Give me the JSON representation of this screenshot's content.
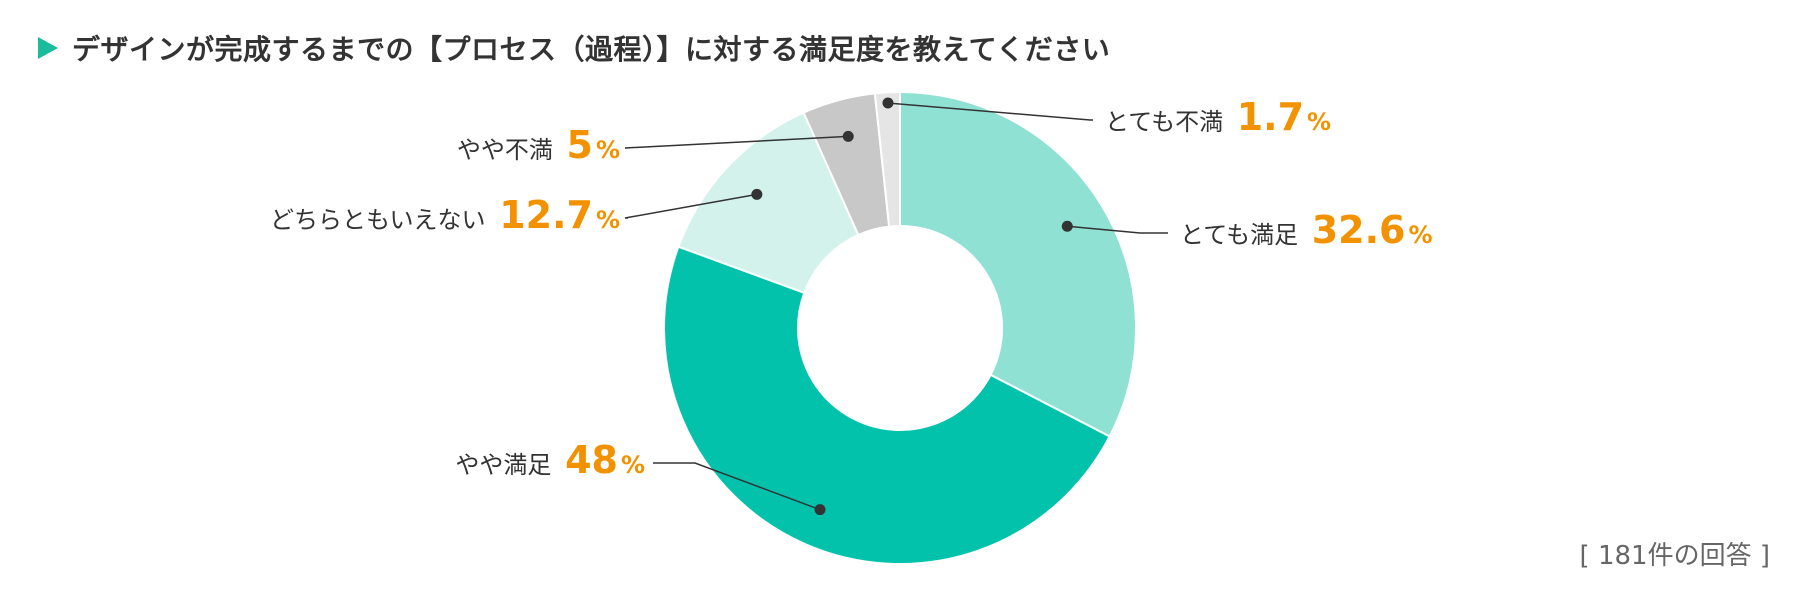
{
  "title": "デザインが完成するまでの【プロセス（過程）】に対する満足度を教えてください",
  "footnote": "[ 181件の回答 ]",
  "colors": {
    "accent_icon": "#1abc9c",
    "percent_text": "#f39200"
  },
  "chart_data": {
    "type": "pie",
    "donut": true,
    "unit": "%",
    "slices": [
      {
        "label": "とても満足",
        "value": 32.6,
        "value_label": "32.6",
        "color": "#8fe1d3"
      },
      {
        "label": "やや満足",
        "value": 48,
        "value_label": "48",
        "color": "#03c2ac"
      },
      {
        "label": "どちらともいえない",
        "value": 12.7,
        "value_label": "12.7",
        "color": "#d3f2ec"
      },
      {
        "label": "やや不満",
        "value": 5,
        "value_label": "5",
        "color": "#c8c8c8"
      },
      {
        "label": "とても不満",
        "value": 1.7,
        "value_label": "1.7",
        "color": "#e5e5e5"
      }
    ]
  }
}
